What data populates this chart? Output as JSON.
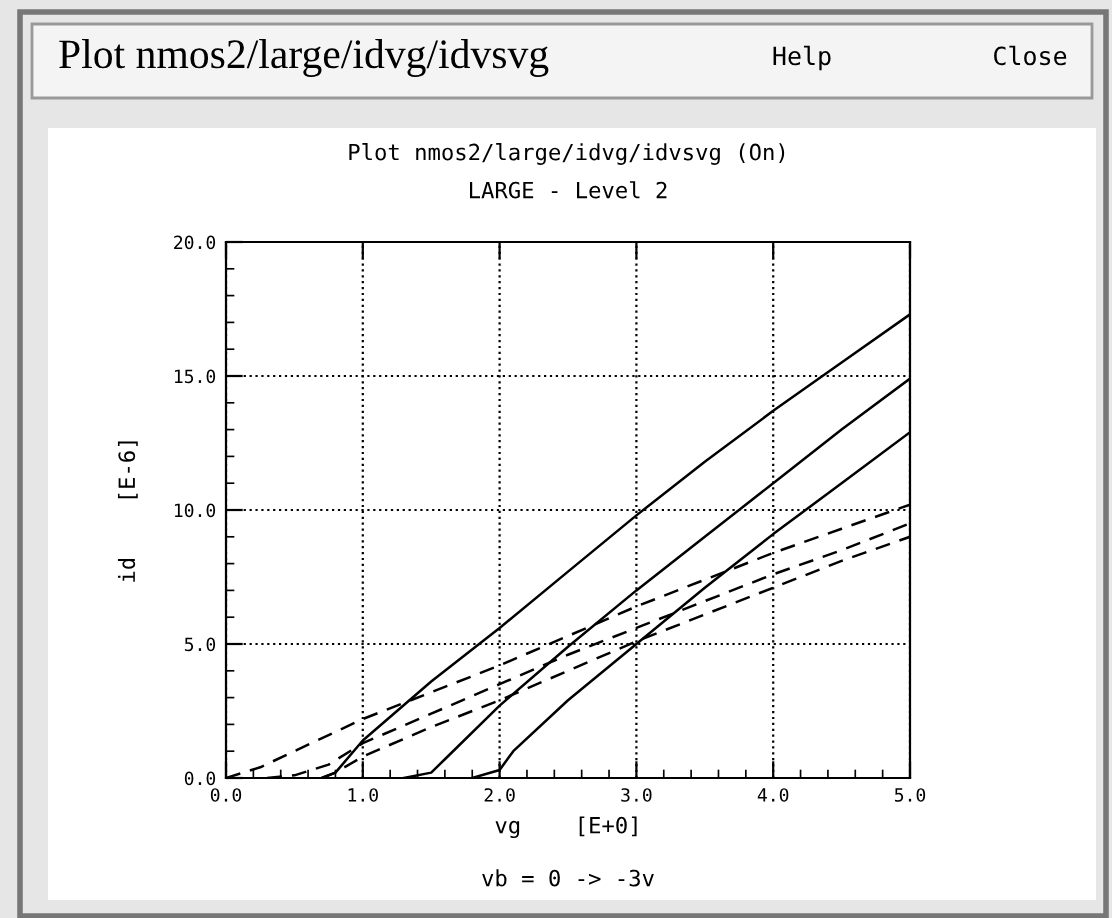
{
  "chart_data": {
    "type": "line",
    "title": "Plot nmos2/large/idvg/idvsvg (On)",
    "subtitle": "LARGE - Level 2",
    "xlabel": "vg    [E+0]",
    "ylabel": "id    [E-6]",
    "annotations": [
      "vb = 0 -> -3v",
      "Plot nmos2/large/idvg/idvsvg",
      "Help",
      "Close"
    ],
    "series": [
      {
        "color": "#000000",
        "line_style": "solid",
        "x": [
          0.7,
          0.8,
          1.0,
          1.5,
          2.0,
          2.5,
          3.0,
          3.5,
          4.0,
          4.5,
          5.0
        ],
        "values": [
          0.0,
          0.2,
          1.4,
          3.6,
          5.6,
          7.7,
          9.8,
          11.8,
          13.7,
          15.5,
          17.3
        ]
      },
      {
        "color": "#000000",
        "line_style": "solid",
        "x": [
          1.3,
          1.5,
          1.6,
          2.0,
          2.5,
          3.0,
          3.5,
          4.0,
          4.5,
          5.0
        ],
        "values": [
          0.0,
          0.2,
          0.7,
          2.7,
          4.9,
          7.0,
          9.0,
          11.0,
          13.0,
          14.9
        ]
      },
      {
        "color": "#000000",
        "line_style": "solid",
        "x": [
          1.8,
          2.0,
          2.1,
          2.5,
          3.0,
          3.5,
          4.0,
          4.5,
          5.0
        ],
        "values": [
          0.0,
          0.3,
          1.0,
          2.9,
          5.0,
          7.1,
          9.1,
          11.0,
          12.9
        ]
      },
      {
        "color": "#000000",
        "line_style": "dashed",
        "x": [
          0.0,
          0.25,
          0.5,
          1.0,
          1.5,
          2.0,
          2.5,
          3.0,
          3.5,
          4.0,
          4.5,
          5.0
        ],
        "values": [
          0.0,
          0.4,
          1.0,
          2.2,
          3.2,
          4.2,
          5.3,
          6.4,
          7.4,
          8.4,
          9.3,
          10.2
        ]
      },
      {
        "color": "#000000",
        "line_style": "dashed",
        "x": [
          0.3,
          0.5,
          0.75,
          1.0,
          1.5,
          2.0,
          2.5,
          3.0,
          3.5,
          4.0,
          4.5,
          5.0
        ],
        "values": [
          0.0,
          0.1,
          0.5,
          1.3,
          2.4,
          3.5,
          4.6,
          5.6,
          6.6,
          7.6,
          8.5,
          9.5
        ]
      },
      {
        "color": "#000000",
        "line_style": "dashed",
        "x": [
          0.7,
          0.8,
          1.0,
          1.5,
          2.0,
          2.5,
          3.0,
          3.5,
          4.0,
          4.5,
          5.0
        ],
        "values": [
          0.0,
          0.2,
          0.8,
          1.9,
          2.9,
          4.0,
          5.1,
          6.1,
          7.1,
          8.1,
          9.0
        ]
      }
    ],
    "xlim": [
      0,
      5
    ],
    "xticks": [
      {
        "value": 0,
        "label": "0.0"
      },
      {
        "value": 1,
        "label": "1.0"
      },
      {
        "value": 2,
        "label": "2.0"
      },
      {
        "value": 3,
        "label": "3.0"
      },
      {
        "value": 4,
        "label": "4.0"
      },
      {
        "value": 5,
        "label": "5.0"
      }
    ],
    "ylim": [
      0,
      20
    ],
    "yticks": [
      {
        "value": 0,
        "label": "0.0"
      },
      {
        "value": 5,
        "label": "5.0"
      },
      {
        "value": 10,
        "label": "10.0"
      },
      {
        "value": 15,
        "label": "15.0"
      },
      {
        "value": 20,
        "label": "20.0"
      }
    ],
    "grid": true,
    "marker": "none"
  }
}
